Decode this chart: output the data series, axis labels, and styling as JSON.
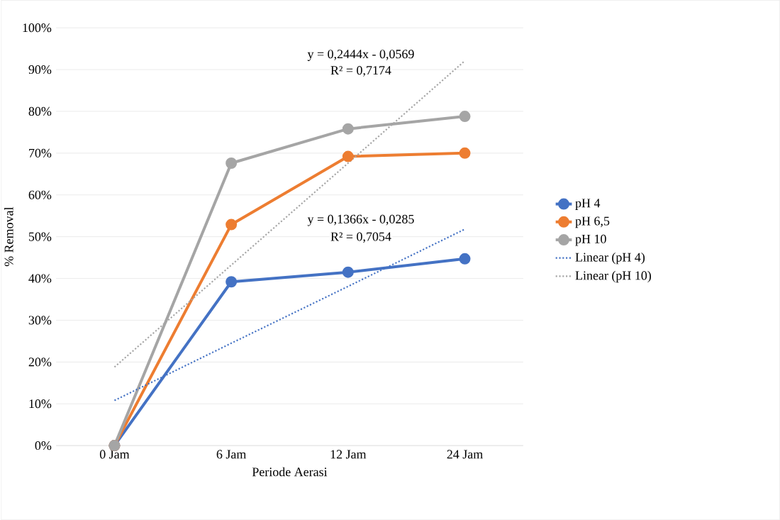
{
  "chart_data": {
    "type": "line",
    "xlabel": "Periode Aerasi",
    "ylabel": "% Removal",
    "categories": [
      "0 Jam",
      "6 Jam",
      "12 Jam",
      "24 Jam"
    ],
    "series": [
      {
        "name": "pH 4",
        "color": "#4472c4",
        "values": [
          0,
          39.2,
          41.5,
          44.7
        ],
        "marker": "circle",
        "line_style": "solid"
      },
      {
        "name": "pH 6,5",
        "color": "#ed7d31",
        "values": [
          0,
          52.9,
          69.2,
          70.0
        ],
        "marker": "circle",
        "line_style": "solid"
      },
      {
        "name": "pH 10",
        "color": "#a5a5a5",
        "values": [
          0,
          67.6,
          75.8,
          78.8
        ],
        "marker": "circle",
        "line_style": "solid"
      },
      {
        "name": "Linear (pH 4)",
        "color": "#4472c4",
        "values": [
          10.8,
          24.5,
          38.1,
          51.8
        ],
        "marker": "none",
        "line_style": "dotted"
      },
      {
        "name": "Linear (pH 10)",
        "color": "#a5a5a5",
        "values": [
          18.8,
          43.2,
          67.6,
          92.1
        ],
        "marker": "none",
        "line_style": "dotted"
      }
    ],
    "ylim": [
      0,
      100
    ],
    "yticks": [
      {
        "value": 0,
        "label": "0%"
      },
      {
        "value": 10,
        "label": "10%"
      },
      {
        "value": 20,
        "label": "20%"
      },
      {
        "value": 30,
        "label": "30%"
      },
      {
        "value": 40,
        "label": "40%"
      },
      {
        "value": 50,
        "label": "50%"
      },
      {
        "value": 60,
        "label": "60%"
      },
      {
        "value": 70,
        "label": "70%"
      },
      {
        "value": 80,
        "label": "80%"
      },
      {
        "value": 90,
        "label": "90%"
      },
      {
        "value": 100,
        "label": "100%"
      }
    ],
    "grid": "y",
    "legend": "right",
    "annotations": [
      "y = 0,2444x - 0,0569",
      "R² = 0,7174",
      "y = 0,1366x - 0,0285",
      "R² = 0,7054"
    ]
  }
}
